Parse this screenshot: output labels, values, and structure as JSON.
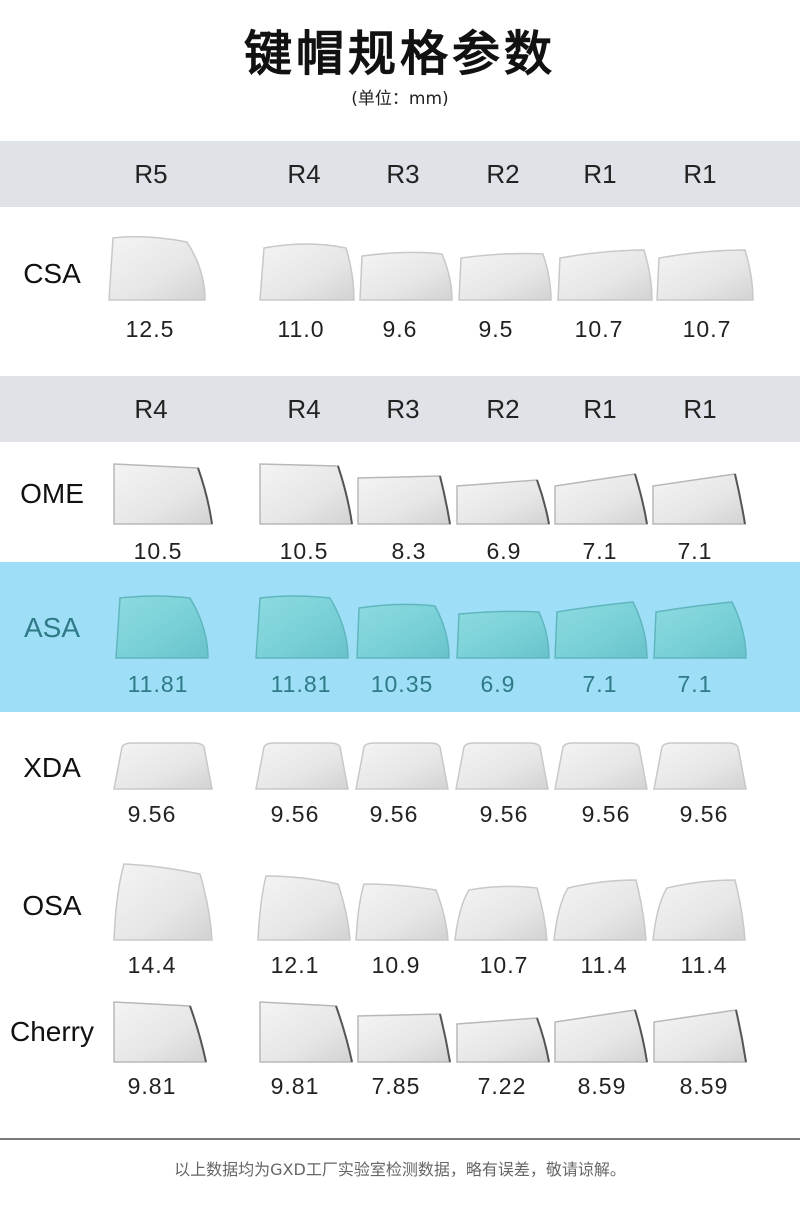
{
  "title": "键帽规格参数",
  "unit": "(单位：mm)",
  "header_rows": [
    {
      "labels": [
        "R5",
        "R4",
        "R3",
        "R2",
        "R1",
        "R1"
      ]
    },
    {
      "labels": [
        "R4",
        "R4",
        "R3",
        "R2",
        "R1",
        "R1"
      ]
    }
  ],
  "profiles": [
    {
      "name": "CSA",
      "values": [
        "12.5",
        "11.0",
        "9.6",
        "9.5",
        "10.7",
        "10.7"
      ],
      "highlighted": false
    },
    {
      "name": "OME",
      "values": [
        "10.5",
        "10.5",
        "8.3",
        "6.9",
        "7.1",
        "7.1"
      ],
      "highlighted": false
    },
    {
      "name": "ASA",
      "values": [
        "11.81",
        "11.81",
        "10.35",
        "6.9",
        "7.1",
        "7.1"
      ],
      "highlighted": true
    },
    {
      "name": "XDA",
      "values": [
        "9.56",
        "9.56",
        "9.56",
        "9.56",
        "9.56",
        "9.56"
      ],
      "highlighted": false
    },
    {
      "name": "OSA",
      "values": [
        "14.4",
        "12.1",
        "10.9",
        "10.7",
        "11.4",
        "11.4"
      ],
      "highlighted": false
    },
    {
      "name": "Cherry",
      "values": [
        "9.81",
        "9.81",
        "7.85",
        "7.22",
        "8.59",
        "8.59"
      ],
      "highlighted": false
    }
  ],
  "footnote": "以上数据均为GXD工厂实验室检测数据，略有误差，敬请谅解。",
  "colors": {
    "header_band": "#dfe3e8",
    "highlight_band": "#9edff7",
    "keycap_gray": "#e9e9e9",
    "keycap_teal": "#7fd3da"
  }
}
